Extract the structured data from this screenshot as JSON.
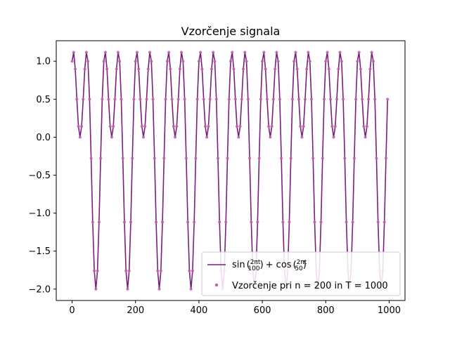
{
  "chart_data": {
    "type": "line",
    "title": "Vzorčenje signala",
    "xlabel": "",
    "ylabel": "",
    "xlim": [
      -50,
      1050
    ],
    "ylim": [
      -2.15,
      1.27
    ],
    "xticks": [
      0,
      200,
      400,
      600,
      800,
      1000
    ],
    "xtick_labels": [
      "0",
      "200",
      "400",
      "600",
      "800",
      "1000"
    ],
    "yticks": [
      -2.0,
      -1.5,
      -1.0,
      -0.5,
      0.0,
      0.5,
      1.0
    ],
    "ytick_labels": [
      "−2.0",
      "−1.5",
      "−1.0",
      "−0.5",
      "0.0",
      "0.5",
      "1.0"
    ],
    "grid": false,
    "legend_position": "lower-right",
    "formula": "x(t) = sin(2πt/100) + cos(2πt/50)",
    "t_range": [
      0,
      995
    ],
    "sample_step": 5,
    "series": [
      {
        "name": "sin(2πt/100) + cos(2πt/50)",
        "kind": "line",
        "color": "#7b1f7e"
      },
      {
        "name": "Vzorčenje pri n = 200 in T = 1000",
        "kind": "scatter",
        "color": "#c060a8"
      }
    ]
  }
}
